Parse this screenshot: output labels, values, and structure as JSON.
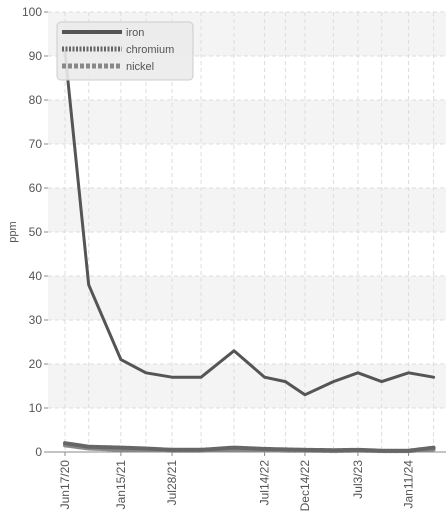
{
  "chart_data": {
    "type": "line",
    "title": "",
    "xlabel": "",
    "ylabel": "ppm",
    "ylim": [
      0,
      100
    ],
    "yticks": [
      0,
      10,
      20,
      30,
      40,
      50,
      60,
      70,
      80,
      90,
      100
    ],
    "grid": true,
    "legend_position": "top-left",
    "x_tick_labels": [
      "Jun17/20",
      "Jan15/21",
      "Jul28/21",
      "Jul14/22",
      "Dec14/22",
      "Jul3/23",
      "Jan11/24"
    ],
    "x": [
      "2020-06-17",
      "2020-09-15",
      "2021-01-15",
      "2021-04-20",
      "2021-07-28",
      "2021-11-15",
      "2022-03-20",
      "2022-07-14",
      "2022-10-01",
      "2022-12-14",
      "2023-04-01",
      "2023-07-03",
      "2023-10-01",
      "2024-01-11",
      "2024-04-15"
    ],
    "series": [
      {
        "name": "iron",
        "color": "#555555",
        "style": "solid",
        "values": [
          91,
          38,
          21,
          18,
          17,
          17,
          23,
          17,
          16,
          13,
          16,
          18,
          16,
          18,
          17
        ]
      },
      {
        "name": "chromium",
        "color": "#666666",
        "style": "dotted",
        "values": [
          2,
          1.2,
          1,
          0.8,
          0.5,
          0.5,
          1,
          0.7,
          0.6,
          0.5,
          0.4,
          0.5,
          0.3,
          0.3,
          1
        ]
      },
      {
        "name": "nickel",
        "color": "#888888",
        "style": "dashed",
        "values": [
          1.5,
          0.8,
          0.5,
          0.4,
          0.3,
          0.3,
          0.5,
          0.4,
          0.3,
          0.3,
          0.2,
          0.3,
          0.2,
          0.2,
          0.6
        ]
      }
    ]
  }
}
